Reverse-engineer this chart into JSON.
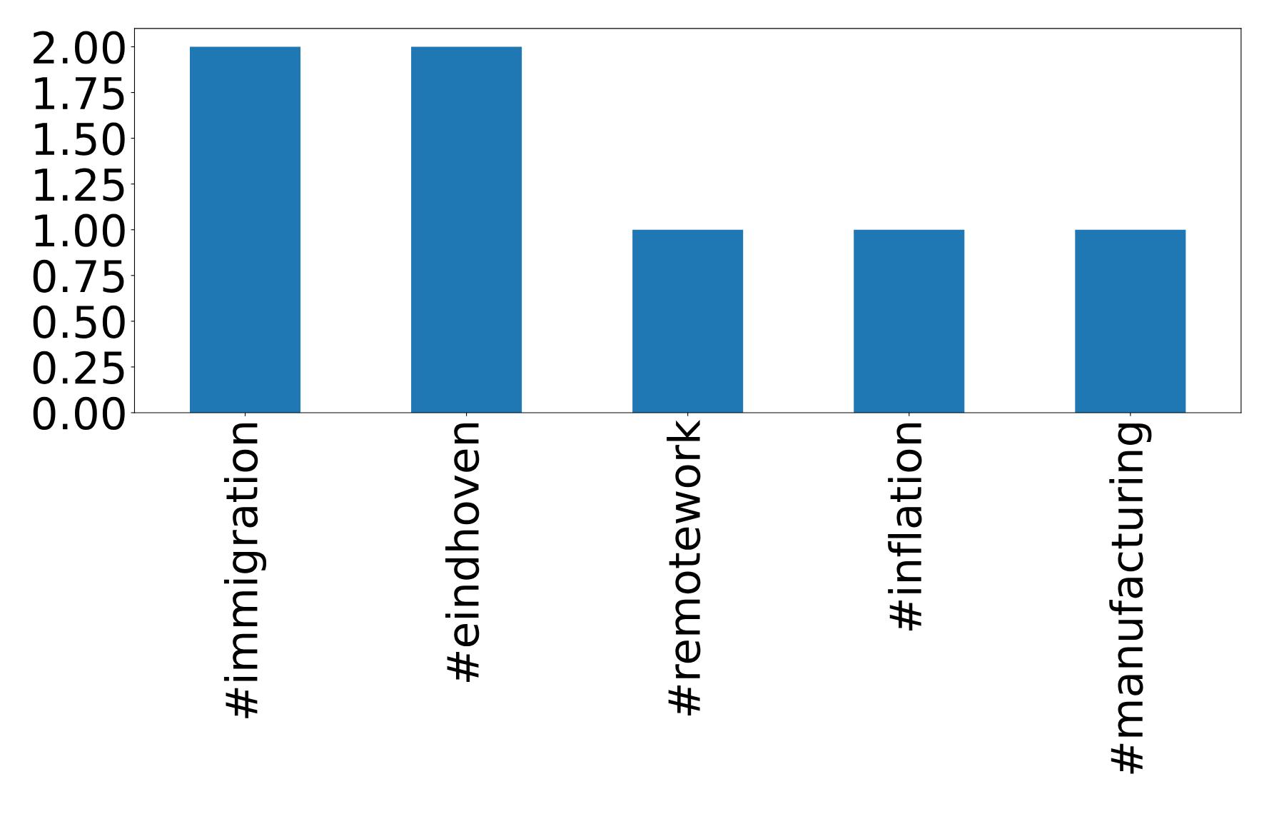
{
  "chart_data": {
    "type": "bar",
    "categories": [
      "#immigration",
      "#eindhoven",
      "#remotework",
      "#inflation",
      "#manufacturing"
    ],
    "values": [
      2,
      2,
      1,
      1,
      1
    ],
    "color": "#1f77b4",
    "ylim": [
      0,
      2.1
    ],
    "yticks": [
      {
        "value": 0,
        "label": "0.00"
      },
      {
        "value": 0.25,
        "label": "0.25"
      },
      {
        "value": 0.5,
        "label": "0.50"
      },
      {
        "value": 0.75,
        "label": "0.75"
      },
      {
        "value": 1,
        "label": "1.00"
      },
      {
        "value": 1.25,
        "label": "1.25"
      },
      {
        "value": 1.5,
        "label": "1.50"
      },
      {
        "value": 1.75,
        "label": "1.75"
      },
      {
        "value": 2,
        "label": "2.00"
      }
    ],
    "grid": false
  }
}
